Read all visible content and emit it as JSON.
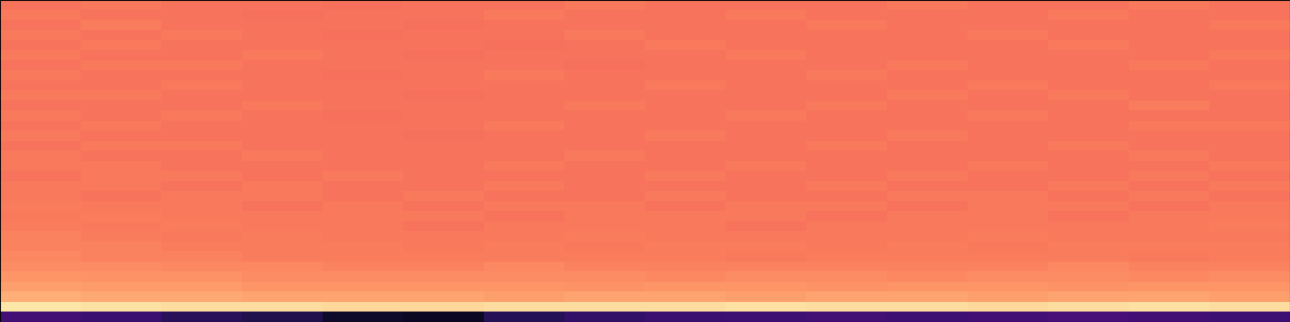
{
  "chart_data": {
    "type": "heatmap",
    "color": "magma",
    "color_range": [
      0,
      1
    ],
    "tick_labels": false,
    "cells": [
      [
        0.71,
        0.72,
        0.71,
        0.71,
        0.7,
        0.71,
        0.71,
        0.72,
        0.71,
        0.71,
        0.71,
        0.72,
        0.71,
        0.71,
        0.72,
        0.71
      ],
      [
        0.72,
        0.71,
        0.71,
        0.7,
        0.71,
        0.71,
        0.72,
        0.71,
        0.71,
        0.72,
        0.71,
        0.71,
        0.71,
        0.72,
        0.71,
        0.71
      ],
      [
        0.71,
        0.73,
        0.71,
        0.71,
        0.71,
        0.7,
        0.71,
        0.71,
        0.71,
        0.71,
        0.72,
        0.71,
        0.71,
        0.71,
        0.71,
        0.72
      ],
      [
        0.72,
        0.71,
        0.72,
        0.71,
        0.7,
        0.71,
        0.71,
        0.72,
        0.71,
        0.71,
        0.71,
        0.71,
        0.72,
        0.71,
        0.71,
        0.71
      ],
      [
        0.71,
        0.72,
        0.71,
        0.71,
        0.71,
        0.71,
        0.7,
        0.71,
        0.72,
        0.71,
        0.71,
        0.71,
        0.71,
        0.72,
        0.71,
        0.71
      ],
      [
        0.72,
        0.71,
        0.71,
        0.72,
        0.71,
        0.7,
        0.71,
        0.71,
        0.71,
        0.72,
        0.71,
        0.71,
        0.71,
        0.71,
        0.71,
        0.72
      ],
      [
        0.71,
        0.72,
        0.72,
        0.71,
        0.71,
        0.71,
        0.71,
        0.7,
        0.71,
        0.71,
        0.71,
        0.72,
        0.71,
        0.71,
        0.72,
        0.71
      ],
      [
        0.72,
        0.71,
        0.71,
        0.71,
        0.7,
        0.71,
        0.72,
        0.71,
        0.71,
        0.71,
        0.72,
        0.71,
        0.71,
        0.71,
        0.71,
        0.71
      ],
      [
        0.71,
        0.71,
        0.72,
        0.71,
        0.71,
        0.71,
        0.71,
        0.71,
        0.72,
        0.71,
        0.71,
        0.71,
        0.72,
        0.71,
        0.71,
        0.72
      ],
      [
        0.72,
        0.72,
        0.71,
        0.71,
        0.71,
        0.7,
        0.71,
        0.71,
        0.71,
        0.71,
        0.71,
        0.72,
        0.71,
        0.72,
        0.71,
        0.71
      ],
      [
        0.71,
        0.71,
        0.71,
        0.72,
        0.71,
        0.71,
        0.71,
        0.72,
        0.71,
        0.71,
        0.72,
        0.71,
        0.71,
        0.71,
        0.73,
        0.71
      ],
      [
        0.72,
        0.71,
        0.72,
        0.71,
        0.7,
        0.71,
        0.71,
        0.71,
        0.71,
        0.72,
        0.71,
        0.71,
        0.72,
        0.71,
        0.71,
        0.71
      ],
      [
        0.71,
        0.72,
        0.71,
        0.71,
        0.71,
        0.71,
        0.72,
        0.71,
        0.71,
        0.71,
        0.71,
        0.71,
        0.71,
        0.71,
        0.72,
        0.72
      ],
      [
        0.72,
        0.71,
        0.71,
        0.71,
        0.71,
        0.7,
        0.71,
        0.71,
        0.72,
        0.71,
        0.71,
        0.72,
        0.71,
        0.71,
        0.71,
        0.71
      ],
      [
        0.71,
        0.72,
        0.72,
        0.71,
        0.71,
        0.71,
        0.71,
        0.71,
        0.71,
        0.71,
        0.72,
        0.71,
        0.71,
        0.72,
        0.71,
        0.71
      ],
      [
        0.72,
        0.71,
        0.71,
        0.72,
        0.71,
        0.71,
        0.71,
        0.72,
        0.71,
        0.71,
        0.71,
        0.71,
        0.71,
        0.71,
        0.72,
        0.71
      ],
      [
        0.72,
        0.72,
        0.71,
        0.71,
        0.71,
        0.71,
        0.72,
        0.71,
        0.71,
        0.72,
        0.71,
        0.71,
        0.72,
        0.71,
        0.71,
        0.72
      ],
      [
        0.71,
        0.72,
        0.72,
        0.71,
        0.72,
        0.71,
        0.71,
        0.71,
        0.72,
        0.71,
        0.71,
        0.72,
        0.71,
        0.71,
        0.72,
        0.71
      ],
      [
        0.72,
        0.72,
        0.71,
        0.72,
        0.71,
        0.71,
        0.72,
        0.71,
        0.71,
        0.71,
        0.72,
        0.71,
        0.71,
        0.72,
        0.71,
        0.72
      ],
      [
        0.72,
        0.71,
        0.72,
        0.72,
        0.71,
        0.72,
        0.71,
        0.71,
        0.72,
        0.71,
        0.71,
        0.72,
        0.72,
        0.71,
        0.72,
        0.71
      ],
      [
        0.73,
        0.72,
        0.72,
        0.71,
        0.72,
        0.71,
        0.72,
        0.72,
        0.71,
        0.72,
        0.72,
        0.71,
        0.72,
        0.72,
        0.71,
        0.72
      ],
      [
        0.72,
        0.73,
        0.72,
        0.72,
        0.72,
        0.72,
        0.71,
        0.72,
        0.72,
        0.72,
        0.71,
        0.72,
        0.72,
        0.71,
        0.72,
        0.72
      ],
      [
        0.73,
        0.72,
        0.73,
        0.72,
        0.72,
        0.71,
        0.72,
        0.72,
        0.72,
        0.71,
        0.72,
        0.72,
        0.72,
        0.72,
        0.72,
        0.73
      ],
      [
        0.74,
        0.73,
        0.72,
        0.73,
        0.72,
        0.72,
        0.72,
        0.73,
        0.72,
        0.72,
        0.72,
        0.72,
        0.73,
        0.72,
        0.72,
        0.72
      ],
      [
        0.74,
        0.74,
        0.73,
        0.73,
        0.73,
        0.72,
        0.73,
        0.72,
        0.73,
        0.73,
        0.72,
        0.73,
        0.72,
        0.73,
        0.73,
        0.73
      ],
      [
        0.75,
        0.74,
        0.74,
        0.73,
        0.73,
        0.73,
        0.73,
        0.73,
        0.73,
        0.72,
        0.73,
        0.73,
        0.73,
        0.73,
        0.72,
        0.73
      ],
      [
        0.76,
        0.76,
        0.75,
        0.75,
        0.74,
        0.74,
        0.75,
        0.74,
        0.74,
        0.74,
        0.74,
        0.74,
        0.74,
        0.75,
        0.74,
        0.74
      ],
      [
        0.78,
        0.77,
        0.77,
        0.76,
        0.76,
        0.76,
        0.76,
        0.76,
        0.75,
        0.76,
        0.76,
        0.75,
        0.76,
        0.76,
        0.75,
        0.76
      ],
      [
        0.8,
        0.79,
        0.79,
        0.78,
        0.78,
        0.78,
        0.78,
        0.77,
        0.78,
        0.78,
        0.77,
        0.78,
        0.78,
        0.77,
        0.78,
        0.78
      ],
      [
        0.83,
        0.82,
        0.82,
        0.81,
        0.81,
        0.81,
        0.8,
        0.81,
        0.81,
        0.8,
        0.81,
        0.81,
        0.8,
        0.81,
        0.81,
        0.8
      ],
      [
        0.95,
        0.94,
        0.93,
        0.93,
        0.92,
        0.92,
        0.93,
        0.93,
        0.93,
        0.94,
        0.93,
        0.93,
        0.92,
        0.93,
        0.94,
        0.93
      ],
      [
        0.22,
        0.2,
        0.16,
        0.14,
        0.08,
        0.07,
        0.15,
        0.18,
        0.2,
        0.21,
        0.22,
        0.21,
        0.22,
        0.23,
        0.22,
        0.21
      ]
    ]
  }
}
